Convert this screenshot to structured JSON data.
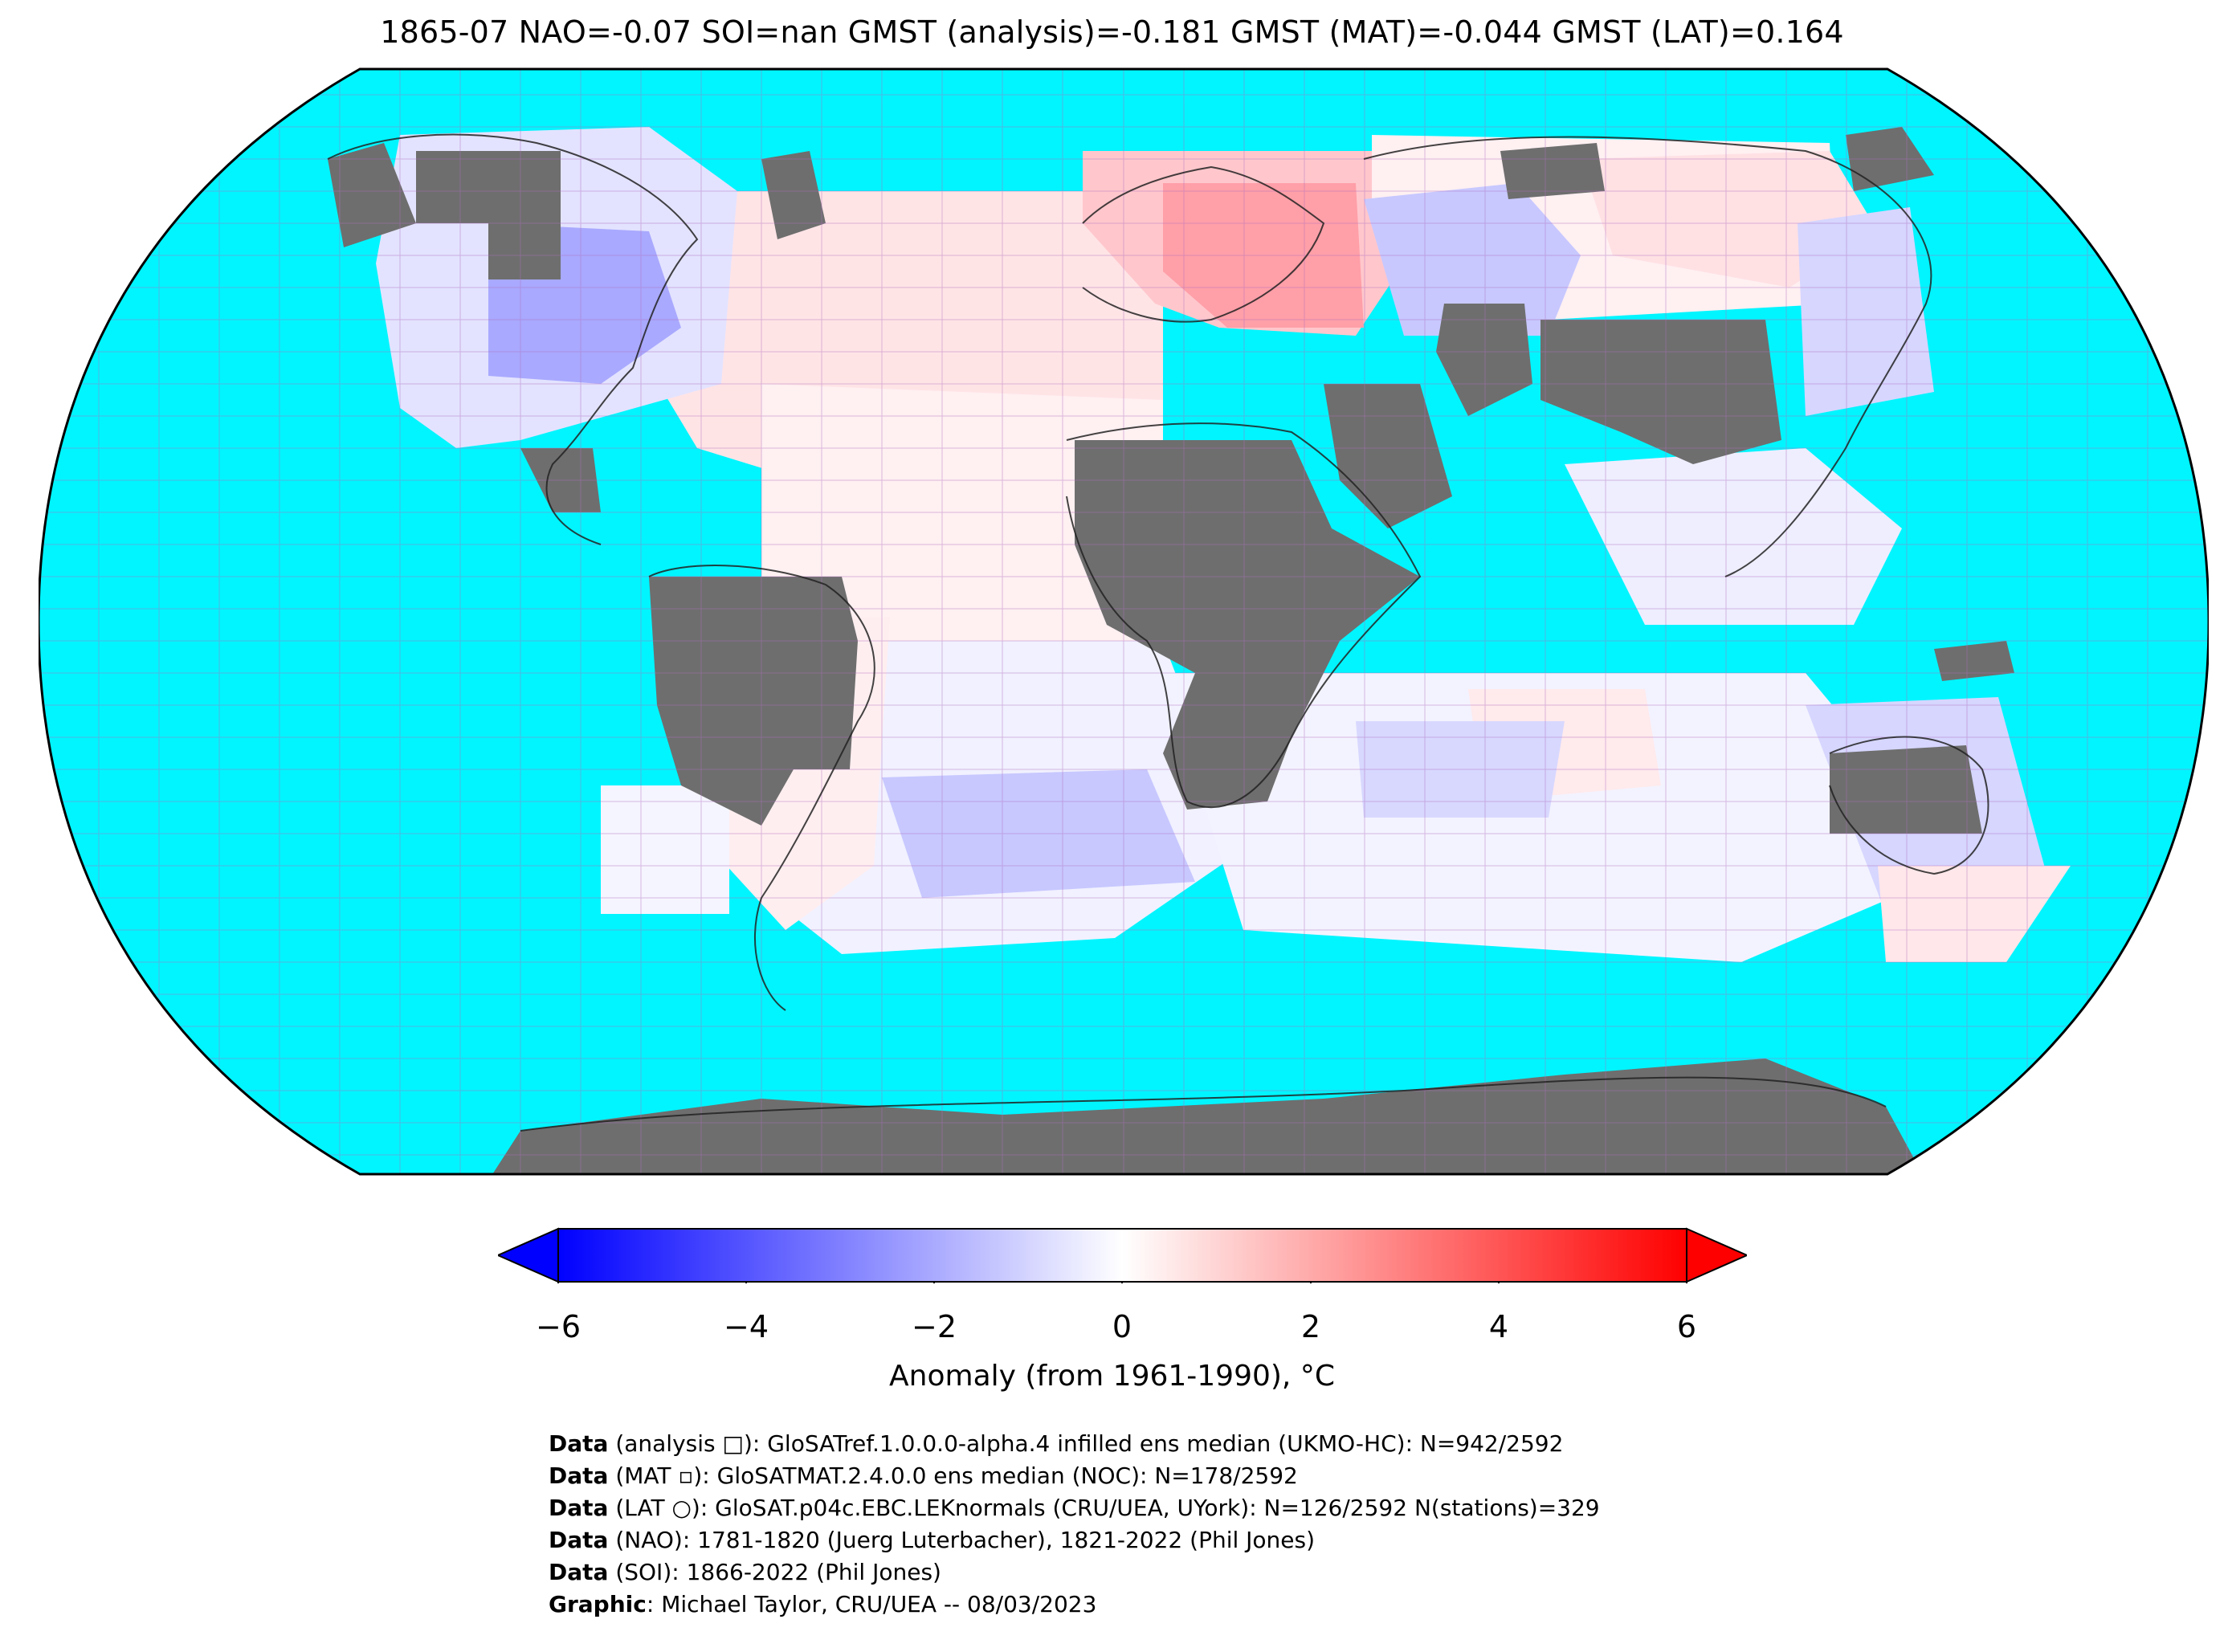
{
  "title": "1865-07 NAO=-0.07 SOI=nan GMST (analysis)=-0.181 GMST (MAT)=-0.044 GMST (LAT)=0.164",
  "colorbar": {
    "title": "Anomaly (from 1961-1990), °C",
    "ticks": [
      "−6",
      "−4",
      "−2",
      "0",
      "2",
      "4",
      "6"
    ],
    "min": -6,
    "max": 6,
    "extend": "both",
    "colors": {
      "low": "#0000ff",
      "mid": "#ffffff",
      "high": "#ff0000"
    }
  },
  "map": {
    "projection": "Robinson",
    "colors": {
      "ocean_missing": "#00f5ff",
      "land_missing": "#6e6e6e",
      "gridline": "#b070c0",
      "coast": "#222222"
    }
  },
  "credits": [
    {
      "label": "Data",
      "text": " (analysis □): GloSATref.1.0.0.0-alpha.4 infilled ens median (UKMO-HC): N=942/2592"
    },
    {
      "label": "Data",
      "text": " (MAT ▫): GloSATMAT.2.4.0.0 ens median (NOC): N=178/2592"
    },
    {
      "label": "Data",
      "text": " (LAT ○): GloSAT.p04c.EBC.LEKnormals (CRU/UEA, UYork): N=126/2592 N(stations)=329"
    },
    {
      "label": "Data",
      "text": " (NAO): 1781-1820 (Juerg Luterbacher), 1821-2022 (Phil Jones)"
    },
    {
      "label": "Data",
      "text": " (SOI): 1866-2022 (Phil Jones)"
    },
    {
      "label": "Graphic",
      "text": ": Michael Taylor, CRU/UEA -- 08/03/2023"
    }
  ]
}
